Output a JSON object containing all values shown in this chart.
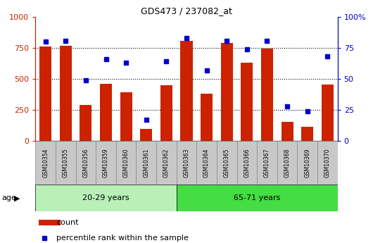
{
  "title": "GDS473 / 237082_at",
  "samples": [
    "GSM10354",
    "GSM10355",
    "GSM10356",
    "GSM10359",
    "GSM10360",
    "GSM10361",
    "GSM10362",
    "GSM10363",
    "GSM10364",
    "GSM10365",
    "GSM10366",
    "GSM10367",
    "GSM10368",
    "GSM10369",
    "GSM10370"
  ],
  "counts": [
    760,
    770,
    290,
    460,
    395,
    100,
    450,
    805,
    380,
    790,
    630,
    745,
    155,
    115,
    455
  ],
  "percentiles": [
    80,
    81,
    49,
    66,
    63,
    17,
    64,
    83,
    57,
    81,
    74,
    81,
    28,
    24,
    68
  ],
  "group1_label": "20-29 years",
  "group1_count": 7,
  "group2_label": "65-71 years",
  "group2_count": 8,
  "age_label": "age",
  "bar_color": "#cc2200",
  "dot_color": "#0000cc",
  "group1_bg": "#b8f0b8",
  "group2_bg": "#44dd44",
  "tick_bg": "#c8c8c8",
  "border_color": "#888888",
  "ylim_left": [
    0,
    1000
  ],
  "ylim_right": [
    0,
    100
  ],
  "yticks_left": [
    0,
    250,
    500,
    750,
    1000
  ],
  "yticks_right": [
    0,
    25,
    50,
    75,
    100
  ],
  "legend_count": "count",
  "legend_percentile": "percentile rank within the sample"
}
